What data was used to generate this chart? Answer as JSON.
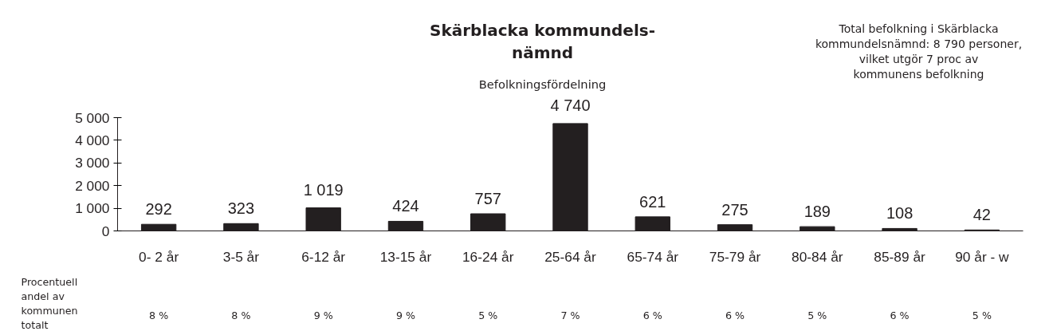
{
  "chart_data": {
    "type": "bar",
    "title": "Skärblacka kommundels-\nnämnd",
    "subtitle": "Befolkningsfördelning",
    "categories": [
      "0- 2 år",
      "3-5 år",
      "6-12 år",
      "13-15 år",
      "16-24 år",
      "25-64 år",
      "65-74 år",
      "75-79 år",
      "80-84 år",
      "85-89 år",
      "90 år - w"
    ],
    "values": [
      292,
      323,
      1019,
      424,
      757,
      4740,
      621,
      275,
      189,
      108,
      42
    ],
    "value_labels": [
      "292",
      "323",
      "1 019",
      "424",
      "757",
      "4 740",
      "621",
      "275",
      "189",
      "108",
      "42"
    ],
    "color": "#231f20",
    "ylim": [
      0,
      5000
    ],
    "yticks": [
      {
        "value": 0,
        "label": "0"
      },
      {
        "value": 1000,
        "label": "1 000"
      },
      {
        "value": 2000,
        "label": "2 000"
      },
      {
        "value": 3000,
        "label": "3 000"
      },
      {
        "value": 4000,
        "label": "4 000"
      },
      {
        "value": 5000,
        "label": "5 000"
      }
    ],
    "grid": false,
    "annotations": [
      "Total befolkning i Skärblacka\nkommundelsnämnd: 8 790 personer,\nvilket utgör 7 proc av\nkommunens befolkning",
      "Procentuell\nandel av\nkommunen\ntotalt",
      "8 %",
      "8 %",
      "9 %",
      "9 %",
      "5 %",
      "7 %",
      "6 %",
      "6 %",
      "5 %",
      "6 %",
      "5 %"
    ]
  }
}
